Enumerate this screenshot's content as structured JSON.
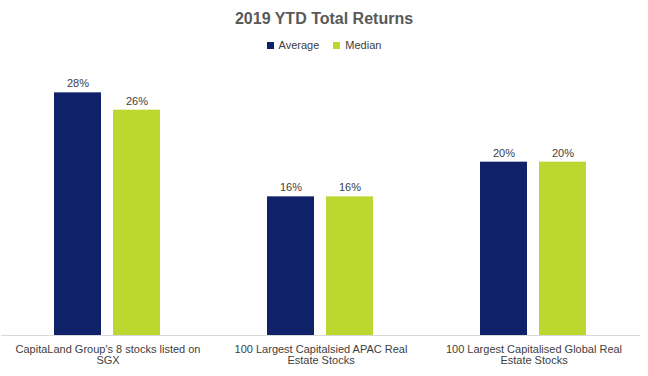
{
  "chart_data": {
    "type": "bar",
    "title": "2019 YTD Total Returns",
    "categories": [
      "CapitaLand Group's 8 stocks listed on SGX",
      "100 Largest Capitalsied APAC Real Estate Stocks",
      "100 Largest Capitalised Global Real Estate Stocks"
    ],
    "series": [
      {
        "name": "Average",
        "color": "#0e2169",
        "values": [
          28,
          16,
          20
        ],
        "value_labels": [
          "28%",
          "16%",
          "20%"
        ]
      },
      {
        "name": "Median",
        "color": "#bdd731",
        "values": [
          26,
          16,
          20
        ],
        "value_labels": [
          "26%",
          "16%",
          "20%"
        ]
      }
    ],
    "ylim": [
      0,
      30
    ],
    "data_labels": true,
    "tick_labels": "x",
    "legend": "top",
    "grid": false
  }
}
